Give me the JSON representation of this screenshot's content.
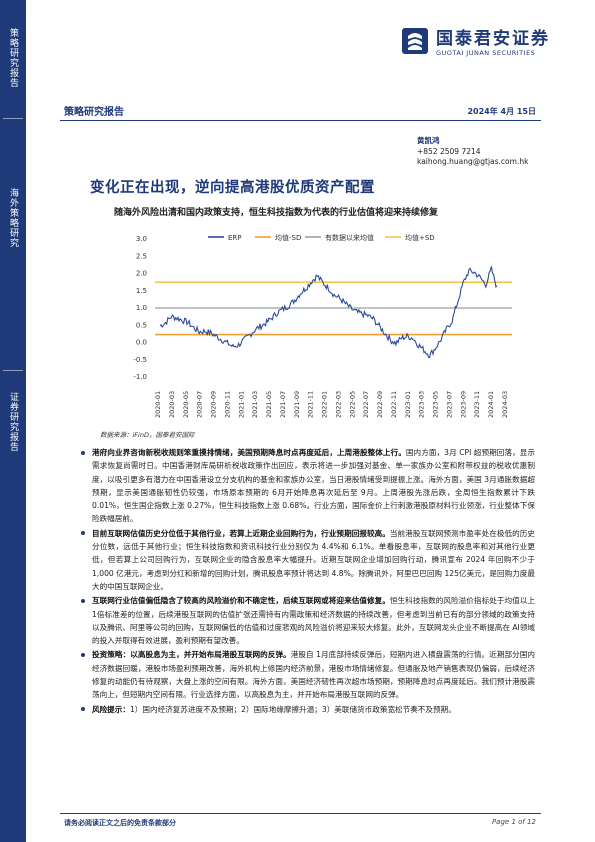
{
  "sidebar": {
    "sections": [
      "策略研究报告",
      "海外策略研究",
      "证券研究报告"
    ]
  },
  "logo": {
    "cn": "国泰君安证券",
    "en": "GUOTAI JUNAN SECURITIES",
    "color": "#1f3a78"
  },
  "header": {
    "category": "策略研究报告",
    "date": "2024年 4月 15日"
  },
  "author": {
    "name": "黄凯鸿",
    "phone": "+852 2509 7214",
    "email": "kaihong.huang@gtjas.com.hk"
  },
  "title": "变化正在出现，逆向提高港股优质资产配置",
  "subtitle": "随海外风险出清和国内政策支持，恒生科技指数为代表的行业估值将迎来持续修复",
  "chart_data": {
    "type": "line",
    "legend": [
      "ERP",
      "均值-SD",
      "有数据以来均值",
      "均值+SD"
    ],
    "colors": {
      "erp": "#2b4a9a",
      "sd_lower": "#f0a030",
      "mean": "#9aa0a6",
      "sd_upper": "#f2c94c"
    },
    "ylim": [
      -1.0,
      3.0
    ],
    "yticks": [
      "3.0",
      "2.5",
      "2.0",
      "1.5",
      "1.0",
      "0.5",
      "0.0",
      "-0.5",
      "-1.0"
    ],
    "xticks": [
      "2020-01",
      "2020-03",
      "2020-05",
      "2020-07",
      "2020-09",
      "2020-11",
      "2021-01",
      "2021-03",
      "2021-05",
      "2021-07",
      "2021-09",
      "2021-11",
      "2022-01",
      "2022-03",
      "2022-05",
      "2022-07",
      "2022-09",
      "2022-11",
      "2023-01",
      "2023-03",
      "2023-05",
      "2023-07",
      "2023-09",
      "2023-11",
      "2024-01",
      "2024-03"
    ],
    "mean_minus_sd": 0.2,
    "mean": 0.97,
    "mean_plus_sd": 1.72,
    "erp": [
      0.45,
      0.55,
      0.72,
      0.68,
      0.62,
      0.55,
      0.4,
      0.28,
      0.3,
      0.25,
      0.15,
      0.05,
      -0.05,
      -0.15,
      -0.1,
      0.05,
      0.2,
      0.35,
      0.45,
      0.55,
      0.7,
      0.85,
      0.95,
      1.05,
      1.2,
      1.4,
      1.55,
      1.75,
      1.9,
      1.7,
      1.55,
      1.35,
      1.25,
      1.1,
      0.95,
      0.85,
      0.8,
      0.75,
      0.65,
      0.45,
      0.25,
      0.05,
      -0.05,
      0.1,
      0.15,
      0.1,
      -0.1,
      -0.25,
      -0.4,
      -0.2,
      0.05,
      0.35,
      0.6,
      1.15,
      1.7,
      2.05,
      2.0,
      1.85,
      1.65,
      2.1,
      1.55
    ]
  },
  "source": "数据来源：iFinD，国泰君安国际",
  "bullets": [
    {
      "lead": "港府向业界咨询新税收规则笨重摸排情绪，美国预期降息时点再度延后，上周港股整体上行。",
      "body": "国内方面，3月 CPI 超预期回落，显示需求恢复尚需时日。中国香港财库局研析税收政策作出回应，表示将进一步加强对基金、单一家族办公室和附带权益的税收优惠制度，以吸引更多有潜力在中国香港设立分支机构的基金和家族办公室，当日港股情绪受到提振上涨。海外方面，美国 3月通胀数据超预期，显示美国通胀韧性仍较强，市场原本预期的 6月开始降息再次延后至 9月。上周港股先涨后跌，全周恒生指数累计下跌 0.01%，恒生国企指数上涨 0.27%，恒生科技指数上涨 0.68%。行业方面，国际金价上行刺激港股原材料行业领涨，行业整体下保险跌幅居前。"
    },
    {
      "lead": "目前互联网估值历史分位低于其他行业，若算上近期企业回购行为，行业预期回报较高。",
      "body": "当前港股互联网预测市盈率处在极低的历史分位数，远低于其他行业；恒生科技指数和资讯科技行业分别仅为 4.4%和 6.1%。单看股息率，互联网的股息率和对其他行业更低，但若算上公司回购行为，互联网企业的隐含股息率大幅提升。近期互联网企业增加回购行动，腾讯宣布 2024 年回购不少于 1,000 亿港元，考虑到分红和新增的回购计划，腾讯股息率预计将达到 4.8%。除腾讯外，阿里巴巴回购 125亿美元，是回购力度最大的中国互联网企业。"
    },
    {
      "lead": "互联网行业估值偏低隐含了较高的风险溢价和不确定性，后续互联网或将迎来估值修复。",
      "body": "恒生科技指数的风险溢价指标处于均值以上 1倍标准差的位置，后续港股互联网的估值扩张还需持有内需政策和经济数据的持续改善，但考虑到当前已有的部分领域的政策支持以及腾讯、阿里等公司的回购，互联网偏低的估值和过度悲观的风险溢价将迎来较大修复。此外，互联网龙头企业不断提高在 AI领域的投入并取得有效进展，盈利预期有望改善。"
    },
    {
      "lead": "投资策略：以高股息为主，并开始布局港股互联网的反弹。",
      "body": "港股自 1月底部持续反弹后，短期内进入横盘震荡的行情。近期部分国内经济数据回暖，港股市场盈利预期改善，海外机构上修国内经济前景，港股市场情绪修复。但通胀及地产销售表现仍偏弱，后续经济修复的动能仍有待观察，大盘上涨的空间有限。海外方面，美国经济韧性再次超市场预期，预期降息时点再度延后。我们预计港股震荡向上，但短期内空间有限。行业选择方面，以高股息为主，并开始布局港股互联网的反弹。"
    },
    {
      "lead": "风险提示：",
      "body": "1）国内经济复苏进度不及预期；2）国际地缘摩擦升温；3）美联储货币政策宽松节奏不及预期。"
    }
  ],
  "footer": {
    "left": "请务必阅读正文之后的免责条款部分",
    "right": "Page 1 of 12"
  }
}
